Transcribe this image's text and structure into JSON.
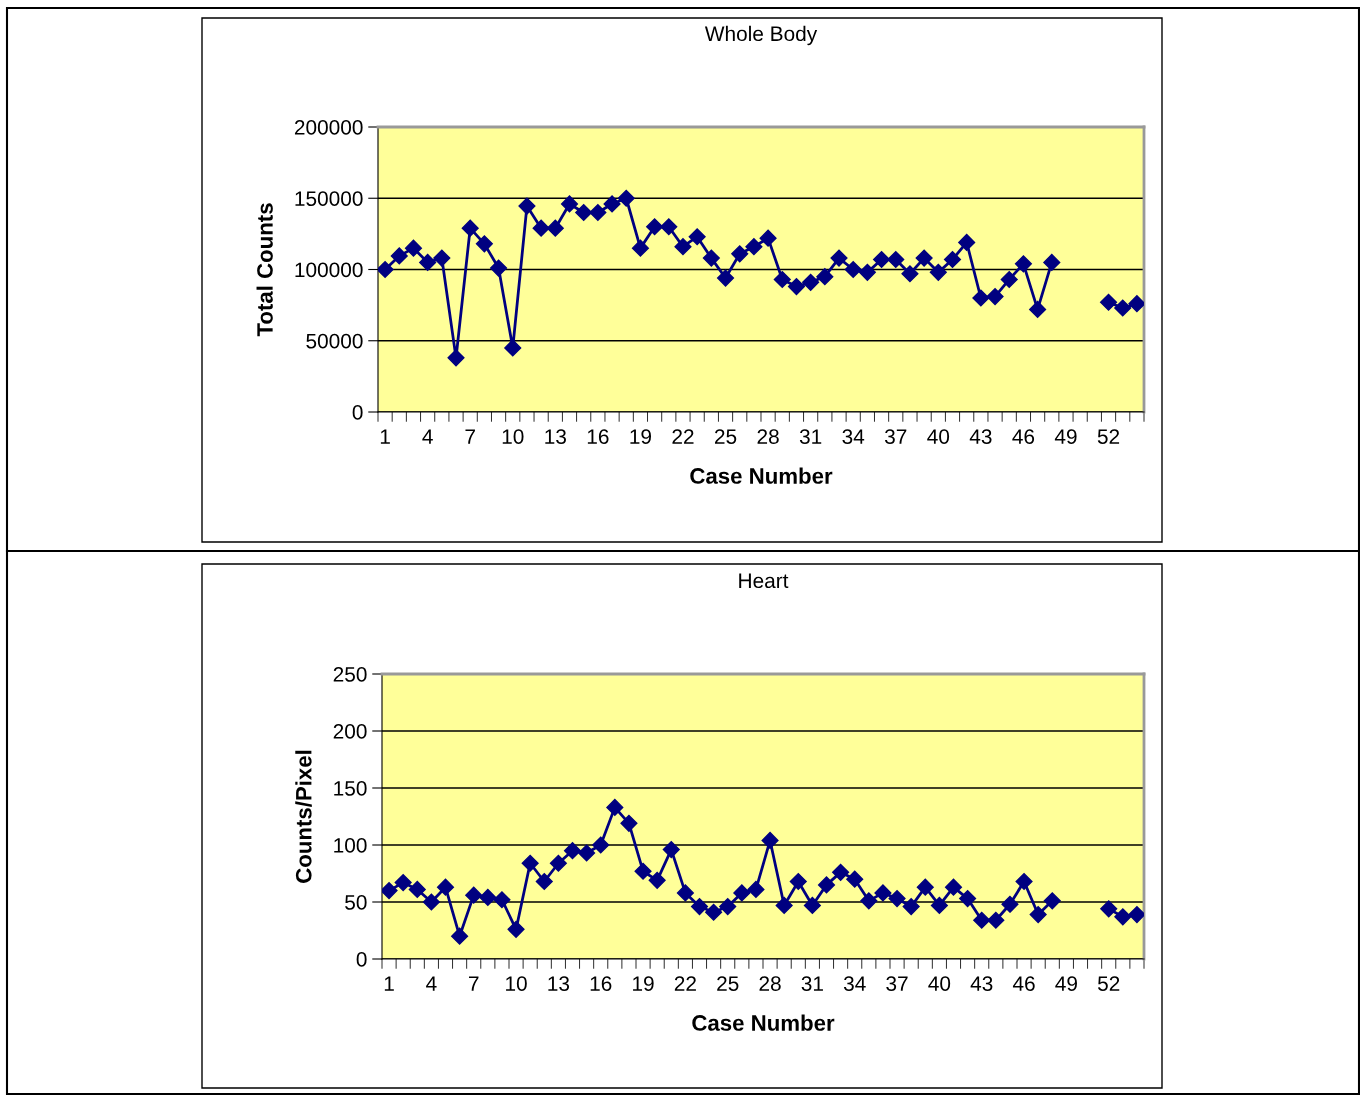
{
  "chart_data": [
    {
      "type": "line",
      "title": "Whole Body",
      "xlabel": "Case Number",
      "ylabel": "Total Counts",
      "categories": [
        "1",
        null,
        null,
        "4",
        null,
        null,
        "7",
        null,
        null,
        "10",
        null,
        null,
        "13",
        null,
        null,
        "16",
        null,
        null,
        "19",
        null,
        null,
        "22",
        null,
        null,
        "25",
        null,
        null,
        "28",
        null,
        null,
        "31",
        null,
        null,
        "34",
        null,
        null,
        "37",
        null,
        null,
        "40",
        null,
        null,
        "43",
        null,
        null,
        "46",
        null,
        null,
        "49",
        null,
        null,
        "52",
        null,
        null
      ],
      "series": [
        {
          "color": "#000080",
          "values": [
            100000,
            109500,
            115000,
            105000,
            108000,
            38000,
            129000,
            118000,
            101000,
            45000,
            144500,
            129000,
            129000,
            146000,
            140000,
            140000,
            146000,
            150000,
            115000,
            130000,
            130000,
            116000,
            123000,
            108000,
            94000,
            111000,
            116000,
            122000,
            93000,
            88000,
            91000,
            95000,
            108000,
            100000,
            98000,
            107000,
            107000,
            97000,
            108000,
            98000,
            107000,
            119000,
            80000,
            81000,
            93000,
            104000,
            72000,
            105000,
            null,
            null,
            null,
            77000,
            73000,
            76000
          ]
        }
      ],
      "ylim": [
        0,
        200000
      ],
      "yticks": [
        0,
        50000,
        100000,
        150000,
        200000
      ],
      "grid": "y",
      "marker": "diamond",
      "line_style": "solid"
    },
    {
      "type": "line",
      "title": "Heart",
      "xlabel": "Case Number",
      "ylabel": "Counts/Pixel",
      "categories": [
        "1",
        null,
        null,
        "4",
        null,
        null,
        "7",
        null,
        null,
        "10",
        null,
        null,
        "13",
        null,
        null,
        "16",
        null,
        null,
        "19",
        null,
        null,
        "22",
        null,
        null,
        "25",
        null,
        null,
        "28",
        null,
        null,
        "31",
        null,
        null,
        "34",
        null,
        null,
        "37",
        null,
        null,
        "40",
        null,
        null,
        "43",
        null,
        null,
        "46",
        null,
        null,
        "49",
        null,
        null,
        "52",
        null,
        null
      ],
      "series": [
        {
          "color": "#000080",
          "values": [
            60,
            67,
            61,
            50,
            63,
            20,
            56,
            54,
            52,
            26,
            84,
            68,
            84,
            95,
            93,
            100,
            133,
            119,
            77,
            69,
            96,
            58,
            46,
            41,
            46,
            58,
            61,
            104,
            47,
            68,
            47,
            65,
            76,
            70,
            51,
            58,
            53,
            46,
            63,
            47,
            63,
            53,
            34,
            34,
            48,
            68,
            39,
            51,
            null,
            null,
            null,
            44,
            37,
            39
          ]
        }
      ],
      "ylim": [
        0,
        250
      ],
      "yticks": [
        0,
        50,
        100,
        150,
        200,
        250
      ],
      "grid": "y",
      "marker": "diamond",
      "line_style": "solid"
    }
  ]
}
